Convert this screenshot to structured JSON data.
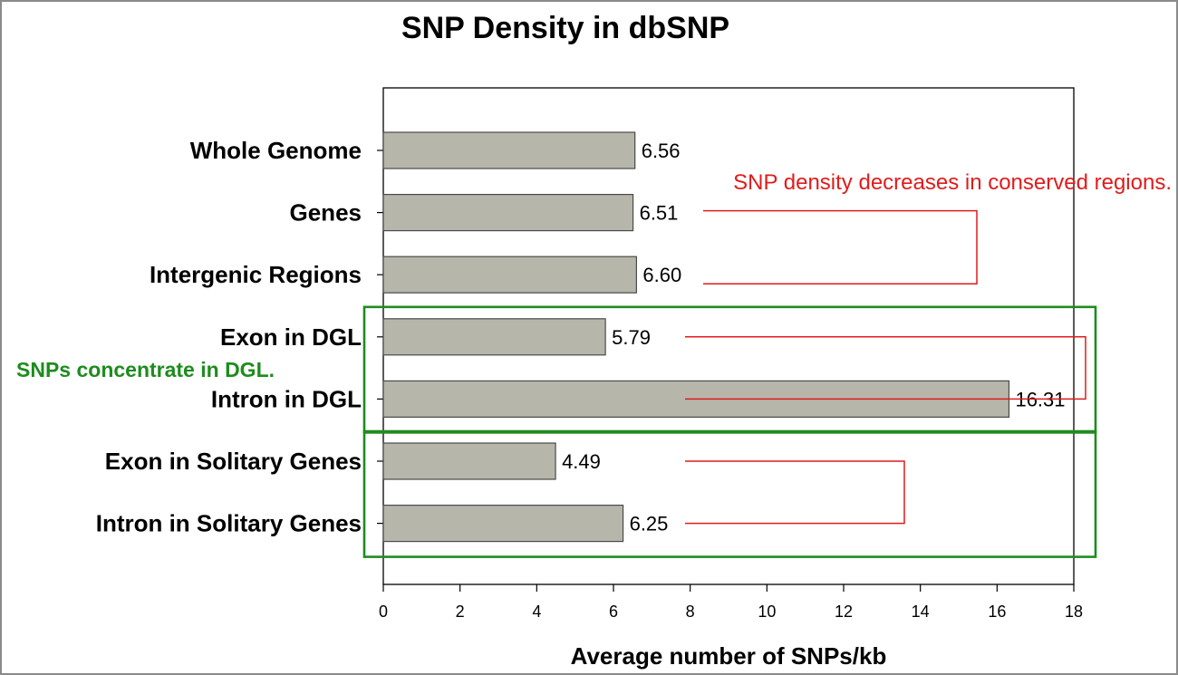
{
  "chart_data": {
    "type": "bar",
    "orientation": "horizontal",
    "title": "SNP Density in dbSNP",
    "xlabel": "Average number of SNPs/kb",
    "ylabel": "",
    "xlim": [
      0,
      18
    ],
    "xticks": [
      0,
      2,
      4,
      6,
      8,
      10,
      12,
      14,
      16,
      18
    ],
    "categories": [
      "Whole Genome",
      "Genes",
      "Intergenic Regions",
      "Exon in DGL",
      "Intron in DGL",
      "Exon in Solitary Genes",
      "Intron in Solitary Genes"
    ],
    "values": [
      6.56,
      6.51,
      6.6,
      5.79,
      16.31,
      4.49,
      6.25
    ],
    "value_labels": [
      "6.56",
      "6.51",
      "6.60",
      "5.79",
      "16.31",
      "4.49",
      "6.25"
    ],
    "grid": false,
    "colors": {
      "bar": "#b6b6ab",
      "bar_edge": "#4a4a4a",
      "annotation_red": "#e01c1c",
      "annotation_green": "#1e8c1e",
      "frame": "#8a8a8a"
    },
    "annotations": [
      {
        "text": "SNP density decreases in conserved regions.",
        "color": "#e01c1c",
        "brackets": [
          [
            "Genes",
            "Intergenic Regions"
          ],
          [
            "Exon in DGL",
            "Intron in DGL"
          ],
          [
            "Exon in Solitary Genes",
            "Intron in Solitary Genes"
          ]
        ]
      },
      {
        "text": "SNPs concentrate in DGL.",
        "color": "#1e8c1e",
        "boxes": [
          [
            "Exon in DGL",
            "Intron in DGL"
          ],
          [
            "Exon in Solitary Genes",
            "Intron in Solitary Genes"
          ]
        ]
      }
    ]
  }
}
